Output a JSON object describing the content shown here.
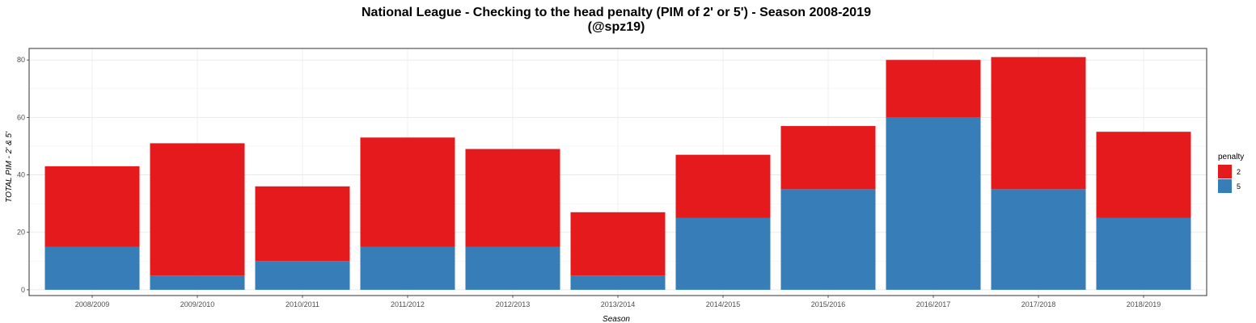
{
  "chart_data": {
    "type": "bar",
    "stacked": true,
    "title": "National League - Checking to the head penalty (PIM of 2' or 5') - Season 2008-2019",
    "subtitle": "(@spz19)",
    "xlabel": "Season",
    "ylabel": "TOTAL PIM - 2' & 5'",
    "ylim": [
      -2,
      84
    ],
    "yticks": [
      0,
      20,
      40,
      60,
      80
    ],
    "grid": true,
    "legend_position": "right",
    "legend_title": "penalty",
    "categories": [
      "2008/2009",
      "2009/2010",
      "2010/2011",
      "2011/2012",
      "2012/2013",
      "2013/2014",
      "2014/2015",
      "2015/2016",
      "2016/2017",
      "2017/2018",
      "2018/2019"
    ],
    "series": [
      {
        "name": "2",
        "color": "#e41a1c",
        "values": [
          28,
          46,
          26,
          38,
          34,
          22,
          22,
          22,
          20,
          46,
          30
        ]
      },
      {
        "name": "5",
        "color": "#377eb8",
        "values": [
          15,
          5,
          10,
          15,
          15,
          5,
          25,
          35,
          60,
          35,
          25
        ]
      }
    ]
  }
}
